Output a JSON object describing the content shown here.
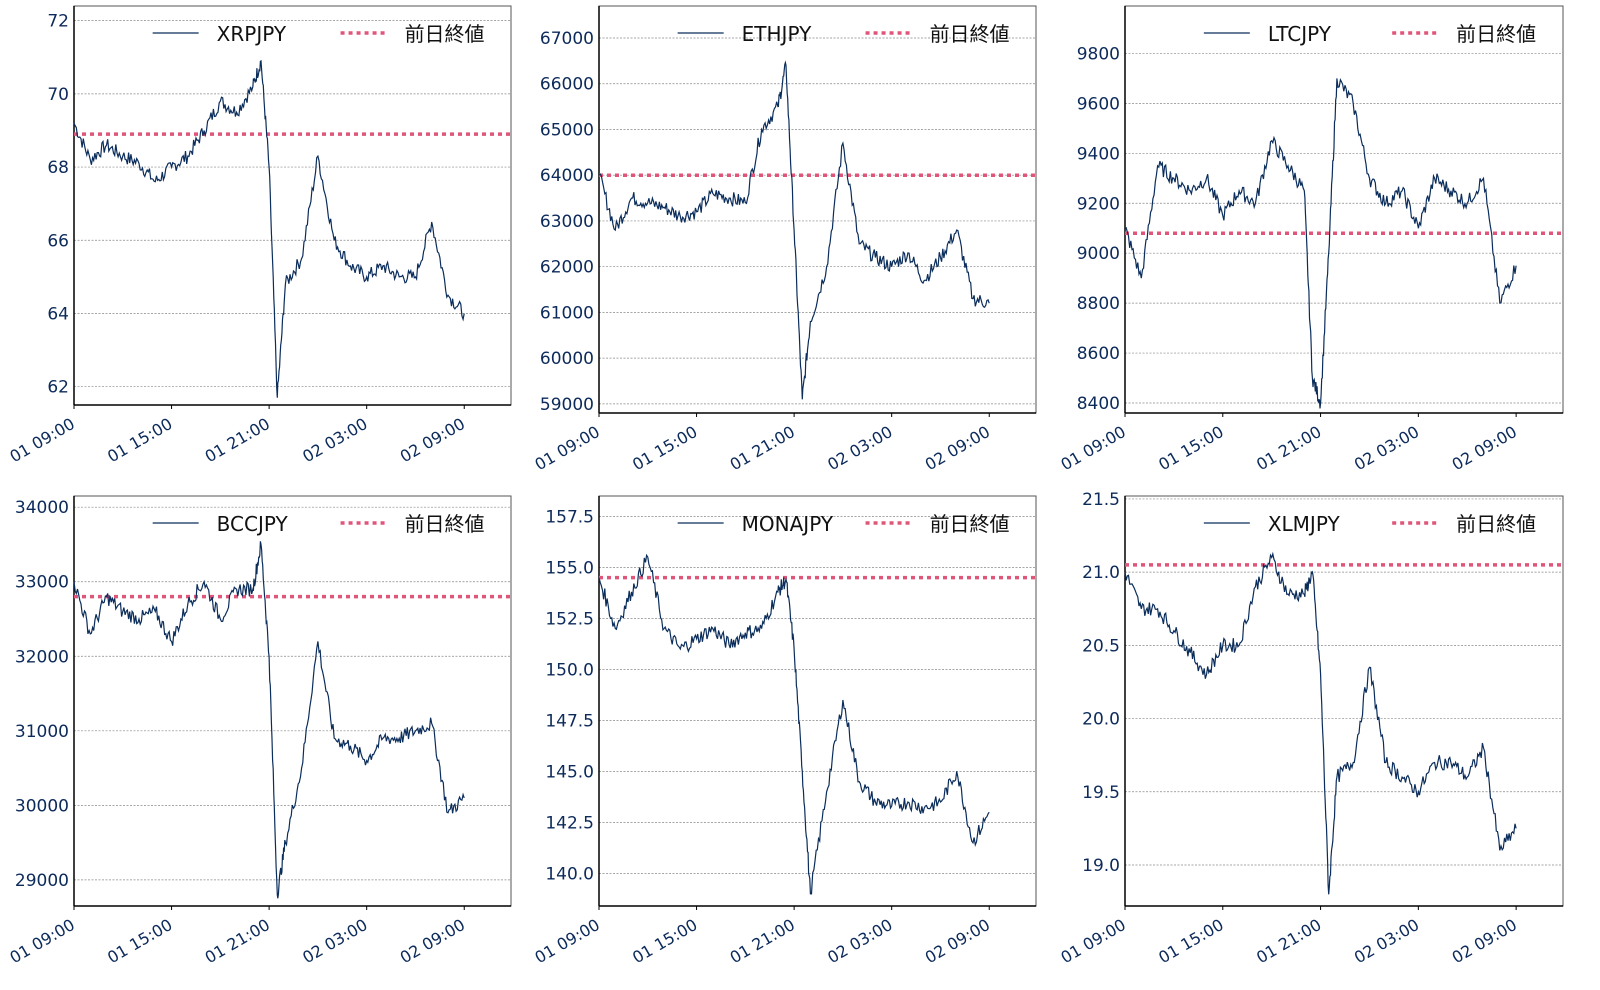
{
  "colors": {
    "series": "#0b2d5b",
    "prev_close": "#e0557a",
    "grid": "#888888",
    "axis": "#000000",
    "tick_label": "#0c2a5a"
  },
  "legend": {
    "prev_close_label": "前日終値"
  },
  "x_ticks": [
    "01 09:00",
    "01 15:00",
    "01 21:00",
    "02 03:00",
    "02 09:00"
  ],
  "chart_data": [
    {
      "type": "line",
      "title": "",
      "series_name": "XRPJPY",
      "xlabel": "",
      "ylabel": "",
      "x": [
        "01 09:00",
        "01 10:00",
        "01 11:00",
        "01 12:00",
        "01 13:00",
        "01 14:00",
        "01 15:00",
        "01 16:00",
        "01 17:00",
        "01 18:00",
        "01 19:00",
        "01 20:00",
        "01 20:30",
        "01 21:00",
        "01 21:30",
        "01 22:00",
        "01 23:00",
        "02 00:00",
        "02 01:00",
        "02 02:00",
        "02 03:00",
        "02 04:00",
        "02 05:00",
        "02 06:00",
        "02 07:00",
        "02 08:00",
        "02 09:00"
      ],
      "values": [
        69.2,
        68.2,
        68.6,
        68.3,
        68.1,
        67.6,
        68.0,
        68.3,
        69.0,
        69.8,
        69.5,
        70.2,
        70.9,
        68.0,
        61.7,
        64.8,
        65.5,
        68.3,
        66.0,
        65.3,
        65.0,
        65.3,
        65.0,
        65.0,
        66.5,
        64.5,
        64.0
      ],
      "prev_close": 68.9,
      "ylim": [
        61.5,
        72.4
      ],
      "yticks": [
        62,
        64,
        66,
        68,
        70,
        72
      ],
      "grid": true,
      "legend_position": "upper right"
    },
    {
      "type": "line",
      "title": "",
      "series_name": "ETHJPY",
      "xlabel": "",
      "ylabel": "",
      "x": [
        "01 09:00",
        "01 10:00",
        "01 11:00",
        "01 12:00",
        "01 13:00",
        "01 14:00",
        "01 15:00",
        "01 16:00",
        "01 17:00",
        "01 18:00",
        "01 19:00",
        "01 20:00",
        "01 20:30",
        "01 21:00",
        "01 21:30",
        "01 22:00",
        "01 23:00",
        "02 00:00",
        "02 01:00",
        "02 02:00",
        "02 03:00",
        "02 04:00",
        "02 05:00",
        "02 06:00",
        "02 07:00",
        "02 08:00",
        "02 09:00"
      ],
      "values": [
        64000,
        62800,
        63500,
        63400,
        63300,
        63100,
        63200,
        63600,
        63500,
        63400,
        65000,
        65500,
        66400,
        62800,
        59100,
        60800,
        62000,
        64700,
        62500,
        62200,
        62000,
        62300,
        61700,
        62200,
        62800,
        61300,
        61200
      ],
      "prev_close": 64000,
      "ylim": [
        58800,
        67700
      ],
      "yticks": [
        59000,
        60000,
        61000,
        62000,
        63000,
        64000,
        65000,
        66000,
        67000
      ],
      "grid": true,
      "legend_position": "upper right"
    },
    {
      "type": "line",
      "title": "",
      "series_name": "LTCJPY",
      "xlabel": "",
      "ylabel": "",
      "x": [
        "01 09:00",
        "01 10:00",
        "01 11:00",
        "01 12:00",
        "01 13:00",
        "01 14:00",
        "01 15:00",
        "01 16:00",
        "01 17:00",
        "01 18:00",
        "01 19:00",
        "01 20:00",
        "01 20:30",
        "01 21:00",
        "01 21:30",
        "01 22:00",
        "01 23:00",
        "02 00:00",
        "02 01:00",
        "02 02:00",
        "02 03:00",
        "02 04:00",
        "02 05:00",
        "02 06:00",
        "02 07:00",
        "02 08:00",
        "02 09:00"
      ],
      "values": [
        9100,
        8900,
        9350,
        9300,
        9250,
        9300,
        9150,
        9250,
        9200,
        9450,
        9350,
        9250,
        8500,
        8400,
        9000,
        9700,
        9600,
        9300,
        9200,
        9250,
        9100,
        9300,
        9250,
        9200,
        9300,
        8800,
        8950
      ],
      "prev_close": 9080,
      "ylim": [
        8360,
        9990
      ],
      "yticks": [
        8400,
        8600,
        8800,
        9000,
        9200,
        9400,
        9600,
        9800
      ],
      "grid": true,
      "legend_position": "upper right"
    },
    {
      "type": "line",
      "title": "",
      "series_name": "BCCJPY",
      "xlabel": "",
      "ylabel": "",
      "x": [
        "01 09:00",
        "01 10:00",
        "01 11:00",
        "01 12:00",
        "01 13:00",
        "01 14:00",
        "01 15:00",
        "01 16:00",
        "01 17:00",
        "01 18:00",
        "01 19:00",
        "01 20:00",
        "01 20:30",
        "01 21:00",
        "01 21:30",
        "01 22:00",
        "01 23:00",
        "02 00:00",
        "02 01:00",
        "02 02:00",
        "02 03:00",
        "02 04:00",
        "02 05:00",
        "02 06:00",
        "02 07:00",
        "02 08:00",
        "02 09:00"
      ],
      "values": [
        33000,
        32300,
        32800,
        32600,
        32500,
        32600,
        32200,
        32700,
        33000,
        32500,
        32900,
        32900,
        33500,
        32000,
        28800,
        29500,
        30500,
        32200,
        30900,
        30800,
        30600,
        30900,
        30900,
        31000,
        31100,
        29900,
        30100
      ],
      "prev_close": 32800,
      "ylim": [
        28650,
        34150
      ],
      "yticks": [
        29000,
        30000,
        31000,
        32000,
        33000,
        34000
      ],
      "grid": true,
      "legend_position": "upper right"
    },
    {
      "type": "line",
      "title": "",
      "series_name": "MONAJPY",
      "xlabel": "",
      "ylabel": "",
      "x": [
        "01 09:00",
        "01 10:00",
        "01 11:00",
        "01 12:00",
        "01 13:00",
        "01 14:00",
        "01 15:00",
        "01 16:00",
        "01 17:00",
        "01 18:00",
        "01 19:00",
        "01 20:00",
        "01 20:30",
        "01 21:00",
        "01 21:30",
        "01 22:00",
        "01 23:00",
        "02 00:00",
        "02 01:00",
        "02 02:00",
        "02 03:00",
        "02 04:00",
        "02 05:00",
        "02 06:00",
        "02 07:00",
        "02 08:00",
        "02 09:00"
      ],
      "values": [
        154.5,
        152.0,
        153.8,
        155.5,
        152.0,
        151.0,
        151.5,
        152.0,
        151.2,
        151.8,
        152.0,
        153.8,
        154.4,
        151.0,
        145.0,
        139.0,
        144.0,
        148.5,
        144.5,
        143.5,
        143.3,
        143.5,
        143.2,
        143.5,
        145.0,
        141.5,
        143.0
      ],
      "prev_close": 154.5,
      "ylim": [
        138.4,
        158.5
      ],
      "yticks": [
        140.0,
        142.5,
        145.0,
        147.5,
        150.0,
        152.5,
        155.0,
        157.5
      ],
      "grid": true,
      "legend_position": "upper right"
    },
    {
      "type": "line",
      "title": "",
      "series_name": "XLMJPY",
      "xlabel": "",
      "ylabel": "",
      "x": [
        "01 09:00",
        "01 10:00",
        "01 11:00",
        "01 12:00",
        "01 13:00",
        "01 14:00",
        "01 15:00",
        "01 16:00",
        "01 17:00",
        "01 18:00",
        "01 19:00",
        "01 20:00",
        "01 20:30",
        "01 21:00",
        "01 21:30",
        "01 22:00",
        "01 23:00",
        "02 00:00",
        "02 01:00",
        "02 02:00",
        "02 03:00",
        "02 04:00",
        "02 05:00",
        "02 06:00",
        "02 07:00",
        "02 08:00",
        "02 09:00"
      ],
      "values": [
        21.0,
        20.75,
        20.75,
        20.6,
        20.45,
        20.3,
        20.5,
        20.5,
        20.9,
        21.1,
        20.85,
        20.85,
        21.0,
        20.3,
        18.8,
        19.6,
        19.7,
        20.35,
        19.7,
        19.6,
        19.5,
        19.7,
        19.7,
        19.6,
        19.8,
        19.1,
        19.25
      ],
      "prev_close": 21.05,
      "ylim": [
        18.72,
        21.52
      ],
      "yticks": [
        19.0,
        19.5,
        20.0,
        20.5,
        21.0,
        21.5
      ],
      "grid": true,
      "legend_position": "upper right"
    }
  ]
}
